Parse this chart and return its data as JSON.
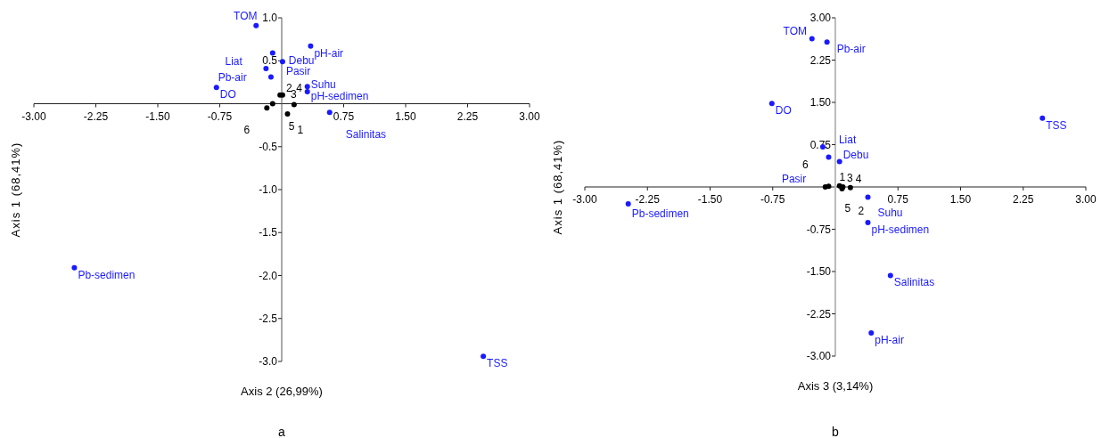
{
  "chart_data": [
    {
      "type": "scatter",
      "xlabel": "Axis 2 (26,99%)",
      "ylabel": "Axis 1 (68,41%)",
      "marker": "circle",
      "xlim": [
        -3,
        3
      ],
      "ylim": [
        -3,
        1
      ],
      "xticks": [
        {
          "value": -3,
          "label": "-3.00"
        },
        {
          "value": -2.25,
          "label": "-2.25"
        },
        {
          "value": -1.5,
          "label": "-1.50"
        },
        {
          "value": -0.75,
          "label": "-0.75"
        },
        {
          "value": 0.75,
          "label": "0.75"
        },
        {
          "value": 1.5,
          "label": "1.50"
        },
        {
          "value": 2.25,
          "label": "2.25"
        },
        {
          "value": 3,
          "label": "3.00"
        }
      ],
      "yticks": [
        {
          "value": 1,
          "label": "1.0"
        },
        0.5,
        -0.5,
        {
          "value": -1,
          "label": "-1.0"
        },
        -1.5,
        {
          "value": -2,
          "label": "-2.0"
        },
        -2.5,
        {
          "value": -3,
          "label": "-3.0"
        }
      ],
      "series": [
        {
          "color": "#1a1aff",
          "x": [
            -0.31,
            -0.11,
            0.01,
            -0.19,
            -0.13,
            -0.79,
            0.35,
            0.31,
            0.31,
            0.58,
            -2.51,
            2.44
          ],
          "values": [
            0.91,
            0.59,
            0.49,
            0.41,
            0.31,
            0.19,
            0.67,
            0.2,
            0.14,
            -0.1,
            -1.91,
            -2.94
          ]
        },
        {
          "color": "#000000",
          "x": [
            0.07,
            0.01,
            0.15,
            -0.02,
            -0.11,
            -0.18
          ],
          "values": [
            -0.12,
            0.1,
            -0.01,
            0.1,
            0,
            -0.05
          ]
        }
      ],
      "annotations": [
        "a",
        {
          "text": "TOM",
          "x": -0.31,
          "y": 0.91
        },
        {
          "text": "Debu",
          "x": -0.11,
          "y": 0.59
        },
        {
          "text": "Pasir",
          "x": 0.01,
          "y": 0.49
        },
        {
          "text": "Liat",
          "x": -0.19,
          "y": 0.41
        },
        {
          "text": "Pb-air",
          "x": -0.13,
          "y": 0.31
        },
        {
          "text": "DO",
          "x": -0.79,
          "y": 0.19
        },
        {
          "text": "pH-air",
          "x": 0.35,
          "y": 0.67
        },
        {
          "text": "pH-sedimen",
          "x": 0.31,
          "y": 0.2
        },
        {
          "text": "Suhu",
          "x": 0.31,
          "y": 0.14
        },
        {
          "text": "Salinitas",
          "x": 0.58,
          "y": -0.1
        },
        {
          "text": "Pb-sedimen",
          "x": -2.51,
          "y": -1.91
        },
        {
          "text": "TSS",
          "x": 2.44,
          "y": -2.94
        },
        {
          "text": "1",
          "x": 0.07,
          "y": -0.12
        },
        {
          "text": "2",
          "x": 0.01,
          "y": 0.1
        },
        {
          "text": "3",
          "x": 0.15,
          "y": -0.01
        },
        {
          "text": "4",
          "x": -0.02,
          "y": 0.1
        },
        {
          "text": "5",
          "x": -0.11,
          "y": 0
        },
        {
          "text": "6",
          "x": -0.18,
          "y": -0.05
        }
      ]
    },
    {
      "type": "scatter",
      "xlabel": "Axis 3 (3,14%)",
      "ylabel": "Axis 1 (68,41%)",
      "marker": "circle",
      "xlim": [
        -3,
        3
      ],
      "ylim": [
        -3,
        3
      ],
      "xticks": [
        {
          "value": -3,
          "label": "-3.00"
        },
        {
          "value": -2.25,
          "label": "-2.25"
        },
        {
          "value": -1.5,
          "label": "-1.50"
        },
        {
          "value": -0.75,
          "label": "-0.75"
        },
        {
          "value": 0.75,
          "label": "0.75"
        },
        {
          "value": 1.5,
          "label": "1.50"
        },
        {
          "value": 2.25,
          "label": "2.25"
        },
        {
          "value": 3,
          "label": "3.00"
        }
      ],
      "yticks": [
        {
          "value": 3,
          "label": "3.00"
        },
        2.25,
        {
          "value": 1.5,
          "label": "1.50"
        },
        0.75,
        -0.75,
        {
          "value": -1.5,
          "label": "-1.50"
        },
        -2.25,
        {
          "value": -3,
          "label": "-3.00"
        }
      ],
      "series": [
        {
          "color": "#1a1aff",
          "x": [
            -0.28,
            -0.1,
            -0.76,
            -0.15,
            -0.08,
            0.05,
            2.48,
            -2.48,
            0.39,
            0.39,
            0.66,
            0.43
          ],
          "values": [
            2.63,
            2.57,
            1.48,
            0.71,
            0.53,
            0.45,
            1.22,
            -0.3,
            -0.18,
            -0.63,
            -1.57,
            -2.59
          ]
        },
        {
          "color": "#000000",
          "x": [
            0.09,
            0.08,
            0.18,
            0.05,
            -0.08,
            -0.12
          ],
          "values": [
            0,
            -0.03,
            -0.01,
            0.02,
            0.01,
            0
          ]
        }
      ],
      "annotations": [
        "b",
        {
          "text": "TOM",
          "x": -0.28,
          "y": 2.63
        },
        {
          "text": "Pb-air",
          "x": -0.1,
          "y": 2.57
        },
        {
          "text": "DO",
          "x": -0.76,
          "y": 1.48
        },
        {
          "text": "Liat",
          "x": -0.15,
          "y": 0.71
        },
        {
          "text": "Pasir",
          "x": -0.08,
          "y": 0.53
        },
        {
          "text": "Debu",
          "x": 0.05,
          "y": 0.45
        },
        {
          "text": "TSS",
          "x": 2.48,
          "y": 1.22
        },
        {
          "text": "Pb-sedimen",
          "x": -2.48,
          "y": -0.3
        },
        {
          "text": "Suhu",
          "x": 0.39,
          "y": -0.18
        },
        {
          "text": "pH-sedimen",
          "x": 0.39,
          "y": -0.63
        },
        {
          "text": "Salinitas",
          "x": 0.66,
          "y": -1.57
        },
        {
          "text": "pH-air",
          "x": 0.43,
          "y": -2.59
        },
        {
          "text": "1",
          "x": 0.09,
          "y": 0
        },
        {
          "text": "2",
          "x": 0.08,
          "y": -0.03
        },
        {
          "text": "3",
          "x": 0.18,
          "y": -0.01
        },
        {
          "text": "4",
          "x": 0.05,
          "y": 0.02
        },
        {
          "text": "5",
          "x": -0.08,
          "y": 0.01
        },
        {
          "text": "6",
          "x": -0.12,
          "y": 0
        }
      ]
    }
  ]
}
